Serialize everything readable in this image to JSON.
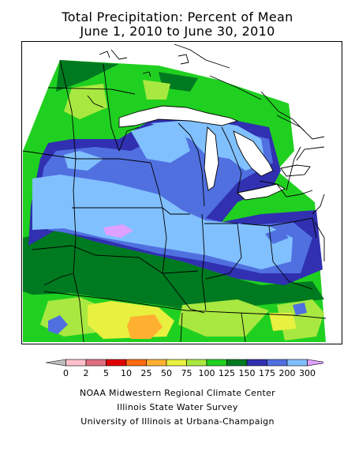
{
  "title": {
    "line1": "Total Precipitation: Percent of Mean",
    "line2": "June 1, 2010 to June 30, 2010"
  },
  "legend": {
    "labels": [
      "0",
      "2",
      "5",
      "10",
      "25",
      "50",
      "75",
      "100",
      "125",
      "150",
      "175",
      "200",
      "300"
    ],
    "colors": [
      "#bdbdbd",
      "#ffc0cb",
      "#e07080",
      "#e00000",
      "#ff6a10",
      "#ffb030",
      "#e8f040",
      "#a8e840",
      "#20d020",
      "#007a20",
      "#3030b0",
      "#5070e0",
      "#80c0ff",
      "#e0a0ff"
    ]
  },
  "credits": {
    "line1": "NOAA Midwestern Regional Climate Center",
    "line2": "Illinois State Water Survey",
    "line3": "University of Illinois at Urbana-Champaign"
  }
}
